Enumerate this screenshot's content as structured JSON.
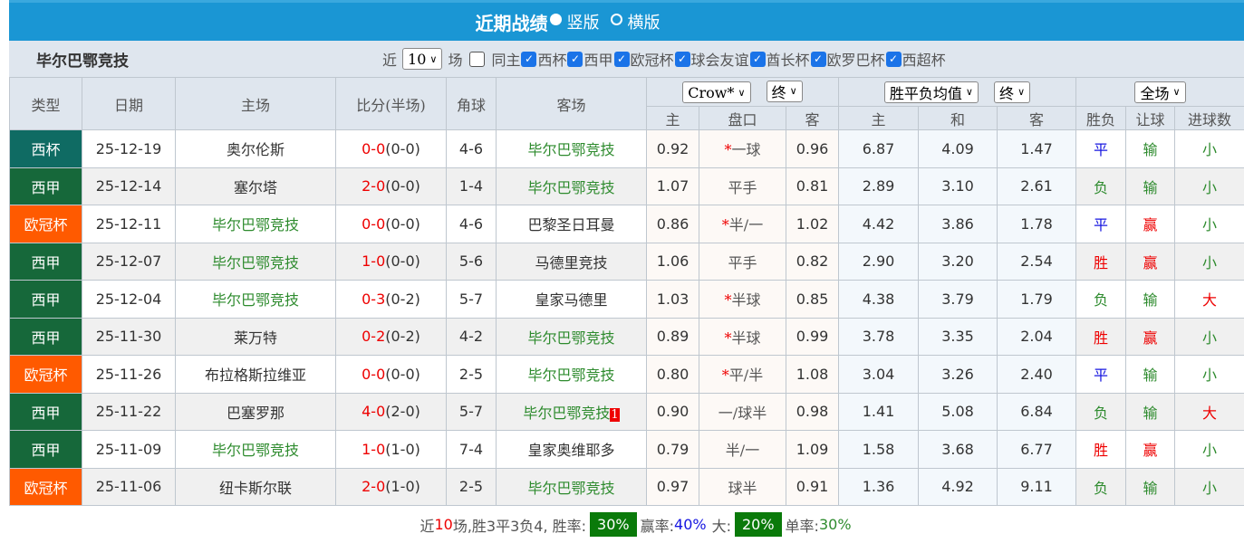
{
  "header": {
    "title": "近期战绩",
    "option_vertical": "竖版",
    "option_horizontal": "横版",
    "selected": "vertical"
  },
  "filter": {
    "team": "毕尔巴鄂竞技",
    "prefix": "近",
    "count": "10",
    "suffix": "场",
    "same_home": {
      "label": "同主",
      "checked": false
    },
    "competitions": [
      {
        "label": "西杯",
        "checked": true
      },
      {
        "label": "西甲",
        "checked": true
      },
      {
        "label": "欧冠杯",
        "checked": true
      },
      {
        "label": "球会友谊",
        "checked": true
      },
      {
        "label": "酋长杯",
        "checked": true
      },
      {
        "label": "欧罗巴杯",
        "checked": true
      },
      {
        "label": "西超杯",
        "checked": true
      }
    ]
  },
  "columns": {
    "type": "类型",
    "date": "日期",
    "home": "主场",
    "score": "比分(半场)",
    "corners": "角球",
    "away": "客场",
    "result": "胜负",
    "handicap_result": "让球",
    "goals": "进球数",
    "ah_company": "Crow*",
    "ah_stage": "终",
    "eu_type": "胜平负均值",
    "eu_stage": "终",
    "scope": "全场",
    "ah_sub": [
      "主",
      "盘口",
      "客"
    ],
    "eu_sub": [
      "主",
      "和",
      "客"
    ]
  },
  "colors": {
    "西杯": "#0f6b63",
    "西甲": "#16683a",
    "欧冠杯": "#ff5a00",
    "team_green": "#2e8b2e",
    "red": "#e00000",
    "blue": "#1515e0"
  },
  "rows": [
    {
      "type": "西杯",
      "date": "25-12-19",
      "home": "奥尔伦斯",
      "home_hl": false,
      "score": "0-0",
      "ht": "(0-0)",
      "corners": "4-6",
      "away": "毕尔巴鄂竞技",
      "away_hl": true,
      "ah_h": "0.92",
      "ah_star": "*",
      "ah_line": "一球",
      "ah_a": "0.96",
      "eu_h": "6.87",
      "eu_d": "4.09",
      "eu_a": "1.47",
      "res": "平",
      "hres": "输",
      "goals": "小"
    },
    {
      "type": "西甲",
      "date": "25-12-14",
      "home": "塞尔塔",
      "home_hl": false,
      "score": "2-0",
      "ht": "(0-0)",
      "corners": "1-4",
      "away": "毕尔巴鄂竞技",
      "away_hl": true,
      "ah_h": "1.07",
      "ah_star": "",
      "ah_line": "平手",
      "ah_a": "0.81",
      "eu_h": "2.89",
      "eu_d": "3.10",
      "eu_a": "2.61",
      "res": "负",
      "hres": "输",
      "goals": "小"
    },
    {
      "type": "欧冠杯",
      "date": "25-12-11",
      "home": "毕尔巴鄂竞技",
      "home_hl": true,
      "score": "0-0",
      "ht": "(0-0)",
      "corners": "4-6",
      "away": "巴黎圣日耳曼",
      "away_hl": false,
      "ah_h": "0.86",
      "ah_star": "*",
      "ah_line": "半/一",
      "ah_a": "1.02",
      "eu_h": "4.42",
      "eu_d": "3.86",
      "eu_a": "1.78",
      "res": "平",
      "hres": "赢",
      "goals": "小"
    },
    {
      "type": "西甲",
      "date": "25-12-07",
      "home": "毕尔巴鄂竞技",
      "home_hl": true,
      "score": "1-0",
      "ht": "(0-0)",
      "corners": "5-6",
      "away": "马德里竞技",
      "away_hl": false,
      "ah_h": "1.06",
      "ah_star": "",
      "ah_line": "平手",
      "ah_a": "0.82",
      "eu_h": "2.90",
      "eu_d": "3.20",
      "eu_a": "2.54",
      "res": "胜",
      "hres": "赢",
      "goals": "小"
    },
    {
      "type": "西甲",
      "date": "25-12-04",
      "home": "毕尔巴鄂竞技",
      "home_hl": true,
      "score": "0-3",
      "ht": "(0-2)",
      "corners": "5-7",
      "away": "皇家马德里",
      "away_hl": false,
      "ah_h": "1.03",
      "ah_star": "*",
      "ah_line": "半球",
      "ah_a": "0.85",
      "eu_h": "4.38",
      "eu_d": "3.79",
      "eu_a": "1.79",
      "res": "负",
      "hres": "输",
      "goals": "大"
    },
    {
      "type": "西甲",
      "date": "25-11-30",
      "home": "莱万特",
      "home_hl": false,
      "score": "0-2",
      "ht": "(0-2)",
      "corners": "4-2",
      "away": "毕尔巴鄂竞技",
      "away_hl": true,
      "ah_h": "0.89",
      "ah_star": "*",
      "ah_line": "半球",
      "ah_a": "0.99",
      "eu_h": "3.78",
      "eu_d": "3.35",
      "eu_a": "2.04",
      "res": "胜",
      "hres": "赢",
      "goals": "小"
    },
    {
      "type": "欧冠杯",
      "date": "25-11-26",
      "home": "布拉格斯拉维亚",
      "home_hl": false,
      "score": "0-0",
      "ht": "(0-0)",
      "corners": "2-5",
      "away": "毕尔巴鄂竞技",
      "away_hl": true,
      "ah_h": "0.80",
      "ah_star": "*",
      "ah_line": "平/半",
      "ah_a": "1.08",
      "eu_h": "3.04",
      "eu_d": "3.26",
      "eu_a": "2.40",
      "res": "平",
      "hres": "输",
      "goals": "小"
    },
    {
      "type": "西甲",
      "date": "25-11-22",
      "home": "巴塞罗那",
      "home_hl": false,
      "score": "4-0",
      "ht": "(2-0)",
      "corners": "5-7",
      "away": "毕尔巴鄂竞技",
      "away_hl": true,
      "away_badge": "1",
      "ah_h": "0.90",
      "ah_star": "",
      "ah_line": "一/球半",
      "ah_a": "0.98",
      "eu_h": "1.41",
      "eu_d": "5.08",
      "eu_a": "6.84",
      "res": "负",
      "hres": "输",
      "goals": "大"
    },
    {
      "type": "西甲",
      "date": "25-11-09",
      "home": "毕尔巴鄂竞技",
      "home_hl": true,
      "score": "1-0",
      "ht": "(1-0)",
      "corners": "7-4",
      "away": "皇家奥维耶多",
      "away_hl": false,
      "ah_h": "0.79",
      "ah_star": "",
      "ah_line": "半/一",
      "ah_a": "1.09",
      "eu_h": "1.58",
      "eu_d": "3.68",
      "eu_a": "6.77",
      "res": "胜",
      "hres": "赢",
      "goals": "小"
    },
    {
      "type": "欧冠杯",
      "date": "25-11-06",
      "home": "纽卡斯尔联",
      "home_hl": false,
      "score": "2-0",
      "ht": "(1-0)",
      "corners": "2-5",
      "away": "毕尔巴鄂竞技",
      "away_hl": true,
      "ah_h": "0.97",
      "ah_star": "",
      "ah_line": "球半",
      "ah_a": "0.91",
      "eu_h": "1.36",
      "eu_d": "4.92",
      "eu_a": "9.11",
      "res": "负",
      "hres": "输",
      "goals": "小"
    }
  ],
  "summary": {
    "p1": "近",
    "n": "10",
    "p2": "场,胜3平3负4, 胜率:",
    "win_rate": "30%",
    "p3": "赢率:",
    "cover_rate": "40%",
    "p4": "大:",
    "over_rate": "20%",
    "p5": "单率:",
    "odd_rate": "30%"
  }
}
